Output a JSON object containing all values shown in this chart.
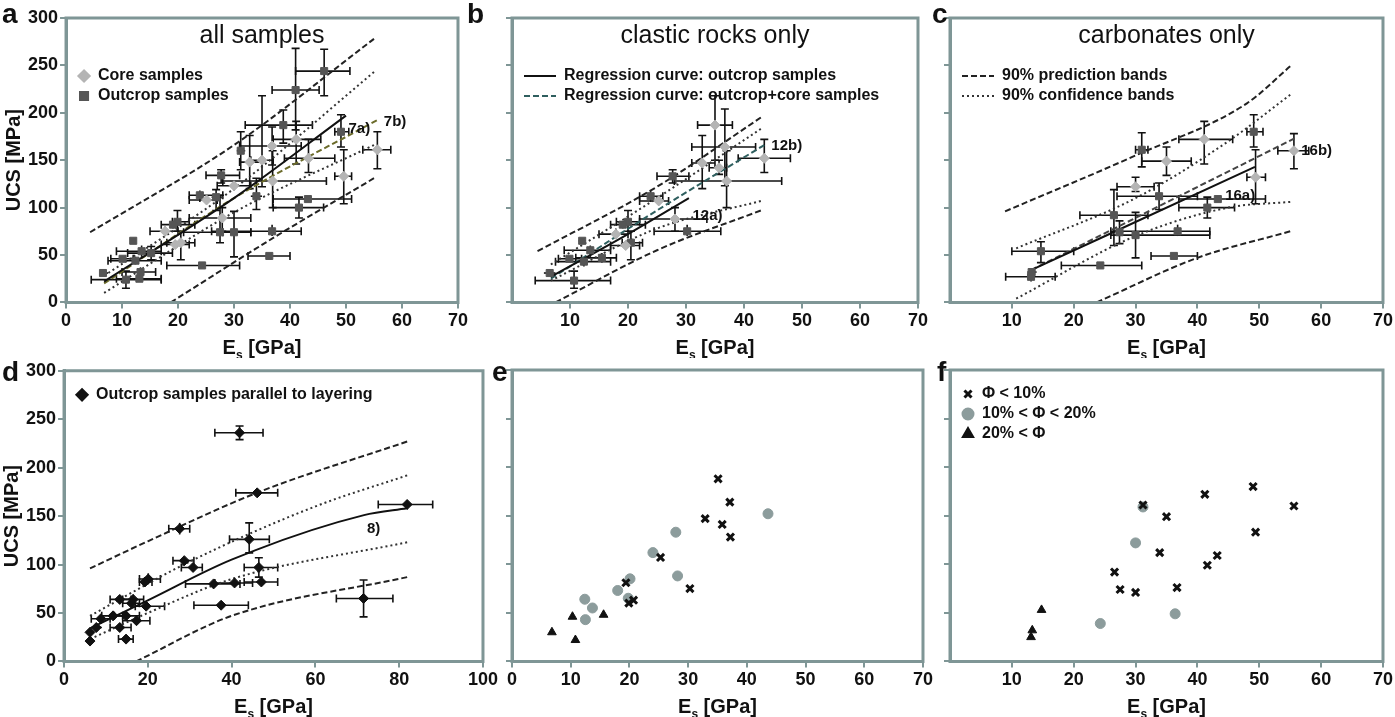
{
  "chart_data": [
    {
      "type": "scatter",
      "title": "all samples",
      "xlabel": "E$_{s}$ [GPa]",
      "ylabel": "UCS [MPa]",
      "xlim": [
        0,
        70
      ],
      "ylim": [
        0,
        300
      ],
      "xticks": [
        0,
        10,
        20,
        30,
        40,
        50,
        60,
        70
      ],
      "yticks": [
        0,
        50,
        100,
        150,
        200,
        250,
        300
      ],
      "legend": "top left",
      "annotations": [
        "a",
        {
          "text": "7a)",
          "x": 49.9,
          "y": 197
        },
        {
          "text": "7b)",
          "x": 55.5,
          "y": 192
        }
      ],
      "series": [
        {
          "name": "Core samples",
          "type": "scatter",
          "marker": "diamond",
          "color": "#b4b4b4",
          "x": [
            41.1,
            36.8,
            32.8,
            35.0,
            43.3,
            55.6,
            49.6,
            30.0,
            25.1,
            36.9,
            27.9,
            19.5,
            20.5,
            17.7
          ],
          "values": [
            172,
            165,
            148,
            150,
            152,
            161,
            133,
            123,
            108,
            128,
            89,
            61,
            63,
            75
          ],
          "errors": [
            [
              146,
              191
            ],
            [
              145,
              185
            ],
            [
              120,
              176
            ],
            [
              122,
              218
            ],
            [
              137,
              172
            ],
            [
              141,
              180
            ],
            [
              104,
              161
            ],
            [
              118,
              128
            ],
            [
              104,
              112
            ],
            [
              100,
              160
            ],
            [
              75,
              100
            ],
            [
              57,
              65
            ],
            [
              45,
              75
            ],
            [
              70,
              80
            ]
          ],
          "xerrors": [
            [
              37,
              45.5
            ],
            [
              31,
              42
            ],
            [
              31,
              35
            ],
            [
              33,
              37
            ],
            [
              39,
              48
            ],
            [
              53,
              58
            ],
            [
              48,
              51
            ],
            [
              27,
              33
            ],
            [
              22,
              27
            ],
            [
              28,
              46.5
            ],
            [
              22,
              33
            ],
            [
              17,
              22
            ],
            [
              18,
              23
            ],
            [
              15,
              20
            ]
          ]
        },
        {
          "name": "Outcrop samples",
          "type": "scatter",
          "marker": "square",
          "color": "#555555",
          "x": [
            46.1,
            41.0,
            38.8,
            31.2,
            27.7,
            23.9,
            26.8,
            34.0,
            43.2,
            41.6,
            30.0,
            27.5,
            36.8,
            36.3,
            24.3,
            19.9,
            19.1,
            12.0,
            13.5,
            15.2,
            10.1,
            12.4,
            6.6,
            13.3,
            13.1,
            10.7,
            49.1
          ],
          "values": [
            244,
            224,
            187,
            160,
            134,
            113,
            111,
            112,
            109,
            100,
            74,
            74,
            75,
            49,
            39,
            85,
            82,
            65,
            54,
            52,
            46,
            44,
            31,
            32,
            25,
            24,
            180
          ],
          "errors": [
            [
              218,
              267
            ],
            [
              182,
              268
            ],
            [
              168,
              203
            ],
            [
              140,
              180
            ],
            [
              126,
              140
            ],
            [
              106,
              118
            ],
            [
              97,
              119
            ],
            [
              98,
              131
            ],
            [
              107,
              111
            ],
            [
              89,
              111
            ],
            [
              48,
              96
            ],
            [
              63,
              113
            ],
            [
              70,
              82
            ],
            [
              46,
              52
            ],
            [
              38,
              40
            ],
            [
              75,
              97
            ],
            [
              78,
              86
            ],
            [
              62,
              68
            ],
            [
              48,
              60
            ],
            [
              45,
              59
            ],
            [
              43,
              49
            ],
            [
              40,
              48
            ],
            [
              28,
              34
            ],
            [
              27,
              37
            ],
            [
              22,
              28
            ],
            [
              15,
              33
            ],
            [
              164,
              198
            ]
          ],
          "xerrors": [
            [
              41,
              50.7
            ],
            [
              36.8,
              45.2
            ],
            [
              32,
              44
            ],
            [
              30.5,
              32
            ],
            [
              25,
              31
            ],
            [
              22,
              28
            ],
            [
              26,
              28
            ],
            [
              33,
              35
            ],
            [
              37,
              51
            ],
            [
              37,
              46
            ],
            [
              28,
              33
            ],
            [
              21,
              33
            ],
            [
              26,
              42
            ],
            [
              32.5,
              40
            ],
            [
              18,
              31
            ],
            [
              19,
              22
            ],
            [
              17,
              23
            ],
            [
              11.5,
              12.5
            ],
            [
              9,
              17
            ],
            [
              11,
              19
            ],
            [
              8,
              12
            ],
            [
              7.5,
              17
            ],
            [
              6,
              7.5
            ],
            [
              10,
              16
            ],
            [
              9,
              17
            ],
            [
              4.5,
              17
            ],
            [
              48,
              50.5
            ]
          ]
        },
        {
          "type": "line",
          "line_style": "dashed",
          "color": "#222222",
          "x": [
            4.3,
            30,
            55
          ],
          "values": [
            74,
            166,
            278
          ]
        },
        {
          "type": "line",
          "line_style": "dotted",
          "color": "#333333",
          "x": [
            6.8,
            30,
            55
          ],
          "values": [
            28,
            120,
            243
          ]
        },
        {
          "type": "line",
          "line_style": "solid",
          "color": "#111111",
          "x": [
            6.8,
            30,
            50
          ],
          "values": [
            22,
            110,
            197
          ]
        },
        {
          "type": "line",
          "line_style": "dashed",
          "color": "#6b6b2a",
          "x": [
            6.8,
            30,
            55.5
          ],
          "values": [
            20,
            110,
            192
          ]
        },
        {
          "type": "line",
          "line_style": "dotted",
          "color": "#333333",
          "x": [
            6.8,
            30,
            55
          ],
          "values": [
            10,
            95,
            166
          ]
        },
        {
          "type": "line",
          "line_style": "dashed",
          "color": "#222222",
          "x": [
            18.7,
            37,
            55
          ],
          "values": [
            0,
            68,
            131
          ]
        }
      ]
    },
    {
      "type": "scatter",
      "title": "clastic rocks only",
      "xlabel": "E$_{s}$ [GPa]",
      "xlim": [
        0,
        70
      ],
      "ylim": [
        0,
        300
      ],
      "xticks": [
        10,
        20,
        30,
        40,
        50,
        60,
        70
      ],
      "yticks": [
        0,
        50,
        100,
        150,
        200,
        250,
        300
      ],
      "tick_labels": "x",
      "legend": "top left",
      "annotations": [
        "b",
        {
          "text": "12a)",
          "x": 30.6,
          "y": 106
        },
        {
          "text": "12b)",
          "x": 43.5,
          "y": 166
        }
      ],
      "series": [
        {
          "name": "Regression curve: outcrop samples",
          "type": "line",
          "line_style": "solid",
          "color": "#111111",
          "x": [
            6.7,
            20,
            30.5
          ],
          "values": [
            27,
            72,
            110
          ]
        },
        {
          "name": "Regression curve: outcrop+core samples",
          "type": "line",
          "line_style": "dashed",
          "color": "#2f5f5f",
          "x": [
            6.7,
            25,
            43.5
          ],
          "values": [
            25,
            97,
            166
          ]
        },
        {
          "type": "scatter",
          "marker": "diamond",
          "color": "#b4b4b4",
          "x": [
            35.0,
            36.7,
            32.8,
            43.5,
            35.7,
            37.0,
            25.3,
            28.1,
            17.9,
            19.6
          ],
          "values": [
            187,
            164,
            147,
            152,
            142,
            128,
            107,
            88,
            72,
            60
          ],
          "errors": [
            [
              150,
              218
            ],
            [
              123,
              204
            ],
            [
              120,
              176
            ],
            [
              137,
              172
            ],
            [
              135,
              150
            ],
            [
              100,
              160
            ],
            [
              104,
              112
            ],
            [
              75,
              100
            ],
            [
              68,
              78
            ],
            [
              57,
              65
            ]
          ],
          "xerrors": [
            [
              32,
              38
            ],
            [
              31,
              42
            ],
            [
              31,
              35
            ],
            [
              39,
              48
            ],
            [
              34,
              37
            ],
            [
              28,
              46.5
            ],
            [
              22,
              27
            ],
            [
              22,
              33.6
            ],
            [
              15,
              20
            ],
            [
              17,
              22
            ]
          ]
        },
        {
          "type": "scatter",
          "marker": "square",
          "color": "#555555",
          "x": [
            27.7,
            23.9,
            30.2,
            20.0,
            19.1,
            20.5,
            12.1,
            13.5,
            15.5,
            12.4,
            9.9,
            6.5,
            10.7
          ],
          "values": [
            133,
            112,
            75,
            85,
            82,
            63,
            65,
            55,
            47,
            43,
            46,
            31,
            23
          ],
          "errors": [
            [
              126,
              140
            ],
            [
              106,
              118
            ],
            [
              70,
              82
            ],
            [
              75,
              97
            ],
            [
              78,
              86
            ],
            [
              45,
              75
            ],
            [
              62,
              68
            ],
            [
              48,
              60
            ],
            [
              42,
              52
            ],
            [
              38,
              48
            ],
            [
              43,
              49
            ],
            [
              28,
              34
            ],
            [
              15,
              33
            ]
          ],
          "xerrors": [
            [
              25,
              30.5
            ],
            [
              22,
              26
            ],
            [
              24.5,
              36
            ],
            [
              18,
              22
            ],
            [
              17,
              23
            ],
            [
              19,
              22.5
            ],
            [
              11.5,
              12.7
            ],
            [
              9,
              17
            ],
            [
              11,
              18
            ],
            [
              7.5,
              17
            ],
            [
              8,
              12
            ],
            [
              5.5,
              7.5
            ],
            [
              4,
              17
            ]
          ]
        },
        {
          "type": "line",
          "line_style": "dashed",
          "color": "#222222",
          "x": [
            4.4,
            25,
            42.9
          ],
          "values": [
            54,
            122,
            195
          ]
        },
        {
          "type": "line",
          "line_style": "dotted",
          "color": "#333333",
          "x": [
            6.7,
            25,
            42.9
          ],
          "values": [
            40,
            110,
            183
          ]
        },
        {
          "type": "line",
          "line_style": "dotted",
          "color": "#333333",
          "x": [
            6.7,
            25,
            42.9
          ],
          "values": [
            23,
            78,
            107
          ]
        },
        {
          "type": "line",
          "line_style": "dashed",
          "color": "#222222",
          "x": [
            7.5,
            25,
            42.9
          ],
          "values": [
            0,
            55,
            97
          ]
        }
      ]
    },
    {
      "type": "scatter",
      "title": "carbonates only",
      "xlabel": "E$_{s}$ [GPa]",
      "xlim": [
        0,
        70
      ],
      "ylim": [
        0,
        300
      ],
      "xticks": [
        10,
        20,
        30,
        40,
        50,
        60,
        70
      ],
      "yticks": [
        0,
        50,
        100,
        150,
        200,
        250,
        300
      ],
      "tick_labels": "x",
      "legend": "top left",
      "annotations": [
        "c",
        {
          "text": "16a)",
          "x": 44.0,
          "y": 127
        },
        {
          "text": "16b)",
          "x": 56.3,
          "y": 174
        }
      ],
      "series": [
        {
          "name": "90% prediction bands",
          "type": "line",
          "line_style": "dashed",
          "color": "#222222",
          "x": [
            8.9,
            30,
            48,
            55
          ],
          "values": [
            96,
            155,
            210,
            249
          ]
        },
        {
          "name": "90% confidence bands",
          "type": "line",
          "line_style": "dotted",
          "color": "#333333",
          "x": [
            10.7,
            30,
            45,
            55
          ],
          "values": [
            57,
            110,
            170,
            219
          ]
        },
        {
          "type": "line",
          "line_style": "dotted",
          "color": "#333333",
          "x": [
            10.7,
            30,
            45,
            55
          ],
          "values": [
            4,
            70,
            100,
            106
          ]
        },
        {
          "type": "line",
          "line_style": "dashed",
          "color": "#222222",
          "x": [
            23.7,
            40,
            55
          ],
          "values": [
            0,
            47,
            75
          ]
        },
        {
          "type": "line",
          "line_style": "solid",
          "color": "#111111",
          "x": [
            13.1,
            49.3
          ],
          "values": [
            34,
            143
          ]
        },
        {
          "type": "line",
          "line_style": "dashed",
          "color": "#444444",
          "x": [
            13.1,
            55.7
          ],
          "values": [
            34,
            173
          ]
        },
        {
          "type": "scatter",
          "marker": "diamond",
          "color": "#b4b4b4",
          "x": [
            41.1,
            35.0,
            55.6,
            49.4,
            30.0
          ],
          "values": [
            172,
            149,
            160,
            132,
            122
          ],
          "errors": [
            [
              146,
              191
            ],
            [
              134,
              164
            ],
            [
              141,
              178
            ],
            [
              104,
              161
            ],
            [
              117,
              132
            ]
          ],
          "xerrors": [
            [
              37,
              45.7
            ],
            [
              31,
              39
            ],
            [
              53,
              58
            ],
            [
              48,
              51
            ],
            [
              27,
              33
            ]
          ]
        },
        {
          "type": "scatter",
          "marker": "square",
          "color": "#555555",
          "x": [
            31.0,
            49.1,
            33.8,
            43.3,
            41.6,
            26.5,
            27.4,
            30.0,
            36.8,
            36.2,
            24.3,
            14.7,
            13.1,
            13.2
          ],
          "values": [
            161,
            180,
            112,
            109,
            100,
            92,
            74,
            71,
            75,
            49,
            39,
            54,
            27,
            32
          ],
          "errors": [
            [
              143,
              179
            ],
            [
              164,
              198
            ],
            [
              98,
              126
            ],
            [
              107,
              111
            ],
            [
              89,
              111
            ],
            [
              60,
              119
            ],
            [
              62,
              86
            ],
            [
              47,
              95
            ],
            [
              70,
              82
            ],
            [
              46,
              52
            ],
            [
              38,
              40
            ],
            [
              42,
              64
            ],
            [
              22,
              27
            ],
            null
          ],
          "xerrors": [
            [
              30,
              32
            ],
            [
              48,
              50.6
            ],
            [
              27,
              40
            ],
            [
              37,
              51
            ],
            [
              37,
              46
            ],
            [
              21,
              32
            ],
            [
              27,
              28
            ],
            [
              26,
              42
            ],
            [
              26,
              42
            ],
            [
              32.5,
              40
            ],
            [
              18,
              31
            ],
            [
              10,
              20
            ],
            [
              9,
              17
            ],
            [
              12.5,
              14
            ]
          ]
        }
      ]
    },
    {
      "type": "scatter",
      "xlabel": "E$_{s}$ [GPa]",
      "ylabel": "UCS [MPa]",
      "xlim": [
        0,
        100
      ],
      "ylim": [
        0,
        300
      ],
      "xticks": [
        0,
        20,
        40,
        60,
        80,
        100
      ],
      "yticks": [
        0,
        50,
        100,
        150,
        200,
        250,
        300
      ],
      "legend": "top left",
      "annotations": [
        "d",
        {
          "text": "8)",
          "x": 71.6,
          "y": 151
        }
      ],
      "series": [
        {
          "name": "Outcrop samples parallel to layering",
          "type": "scatter",
          "marker": "diamond",
          "color": "#111111",
          "x": [
            41.9,
            46.1,
            81.9,
            27.6,
            44.2,
            28.7,
            30.8,
            46.5,
            20.1,
            19.3,
            35.7,
            40.7,
            47.1,
            37.5,
            71.5,
            13.3,
            16.5,
            16.1,
            19.6,
            8.8,
            11.7,
            7.7,
            6.2,
            6.2,
            13.3,
            14.8,
            17.3,
            14.8
          ],
          "values": [
            236,
            174,
            162,
            137,
            126,
            104,
            97,
            97,
            85,
            82,
            80,
            81,
            82,
            58,
            65,
            64,
            64,
            60,
            57,
            44,
            47,
            35,
            30,
            21,
            35,
            47,
            42,
            23
          ],
          "errors": [
            [
              229,
              243
            ],
            [
              172,
              176
            ],
            [
              158,
              166
            ],
            [
              131,
              143
            ],
            [
              112,
              143
            ],
            [
              101,
              107
            ],
            [
              93,
              101
            ],
            [
              87,
              107
            ],
            [
              80,
              91
            ],
            [
              79,
              85
            ],
            [
              77,
              83
            ],
            [
              78,
              84
            ],
            [
              80,
              84
            ],
            [
              54,
              62
            ],
            [
              46,
              84
            ],
            [
              60,
              68
            ],
            [
              59,
              69
            ],
            [
              55,
              65
            ],
            [
              53,
              61
            ],
            [
              41,
              47
            ],
            [
              44,
              50
            ],
            [
              33,
              37
            ],
            [
              27,
              33
            ],
            [
              19,
              23
            ],
            [
              31,
              39
            ],
            [
              43,
              51
            ],
            [
              38,
              46
            ],
            [
              21,
              25
            ]
          ],
          "xerrors": [
            [
              36,
              47.5
            ],
            [
              41,
              51
            ],
            [
              75,
              88
            ],
            [
              25,
              30
            ],
            [
              39.5,
              49
            ],
            [
              26,
              31
            ],
            [
              28,
              33
            ],
            [
              43,
              51
            ],
            [
              18,
              23
            ],
            [
              18,
              21
            ],
            [
              29,
              42
            ],
            [
              36,
              45
            ],
            [
              43,
              51
            ],
            [
              31,
              44
            ],
            [
              65,
              78.5
            ],
            [
              11,
              16
            ],
            [
              14,
              19
            ],
            [
              14,
              18
            ],
            [
              17,
              24
            ],
            [
              6.5,
              11
            ],
            [
              9,
              14
            ],
            [
              6.5,
              9
            ],
            [
              5.5,
              7
            ],
            [
              5.5,
              7
            ],
            [
              11,
              16
            ],
            [
              12,
              18
            ],
            [
              14,
              20.5
            ],
            [
              13,
              16.5
            ]
          ]
        },
        {
          "type": "line",
          "line_style": "dashed",
          "color": "#222222",
          "x": [
            6.2,
            20,
            46,
            81.9
          ],
          "values": [
            96,
            124,
            174,
            227
          ]
        },
        {
          "type": "line",
          "line_style": "dotted",
          "color": "#333333",
          "x": [
            6.2,
            30,
            60,
            81.9
          ],
          "values": [
            47,
            103,
            160,
            192
          ]
        },
        {
          "type": "line",
          "line_style": "solid",
          "color": "#111111",
          "x": [
            6.2,
            20,
            40,
            71.6,
            81.9
          ],
          "values": [
            34,
            63,
            105,
            151,
            158
          ]
        },
        {
          "type": "line",
          "line_style": "dotted",
          "color": "#333333",
          "x": [
            6.2,
            20,
            40,
            81.9
          ],
          "values": [
            23,
            50,
            85,
            123
          ]
        },
        {
          "type": "line",
          "line_style": "dashed",
          "color": "#222222",
          "x": [
            17.2,
            40,
            81.9
          ],
          "values": [
            0,
            47,
            87
          ]
        }
      ]
    },
    {
      "type": "scatter",
      "xlabel": "E$_{s}$ [GPa]",
      "xlim": [
        0,
        70
      ],
      "ylim": [
        0,
        300
      ],
      "xticks": [
        0,
        10,
        20,
        30,
        40,
        50,
        60,
        70
      ],
      "yticks": [
        0,
        50,
        100,
        150,
        200,
        250,
        300
      ],
      "tick_labels": "x",
      "annotations": [
        "e"
      ],
      "series": [
        {
          "type": "scatter",
          "marker": "cross",
          "color": "#111111",
          "x": [
            35.1,
            37.1,
            32.9,
            35.8,
            37.2,
            25.3,
            30.3,
            19.4,
            19.9,
            20.7
          ],
          "values": [
            188,
            164,
            147,
            141,
            128,
            107,
            75,
            81,
            60,
            63
          ]
        },
        {
          "type": "scatter",
          "marker": "circle",
          "color": "#8c9c9c",
          "x": [
            43.6,
            27.9,
            24.0,
            20.1,
            28.2,
            18.0,
            19.8,
            12.4,
            13.7,
            12.5
          ],
          "values": [
            152,
            133,
            112,
            85,
            88,
            73,
            65,
            64,
            55,
            43
          ]
        },
        {
          "type": "scatter",
          "marker": "triangle",
          "color": "#111111",
          "x": [
            6.8,
            10.3,
            15.6,
            10.8
          ],
          "values": [
            30,
            46,
            48,
            22
          ]
        }
      ]
    },
    {
      "type": "scatter",
      "xlabel": "E$_{s}$ [GPa]",
      "xlim": [
        0,
        70
      ],
      "ylim": [
        0,
        300
      ],
      "xticks": [
        10,
        20,
        30,
        40,
        50,
        60,
        70
      ],
      "yticks": [
        0,
        50,
        100,
        150,
        200,
        250,
        300
      ],
      "tick_labels": "x",
      "legend": "top left",
      "annotations": [
        "f"
      ],
      "series": [
        {
          "name": "Φ < 10%",
          "type": "scatter",
          "marker": "cross",
          "color": "#111111",
          "x": [
            49.0,
            41.2,
            31.2,
            35.0,
            55.6,
            49.4,
            33.9,
            43.2,
            41.6,
            26.6,
            27.5,
            30.0,
            36.7
          ],
          "values": [
            180,
            172,
            161,
            149,
            160,
            133,
            112,
            109,
            99,
            92,
            74,
            71,
            76
          ]
        },
        {
          "name": "10% < Φ < 20%",
          "type": "scatter",
          "marker": "circle",
          "color": "#8c9c9c",
          "x": [
            31.2,
            30.0,
            24.3,
            36.4
          ],
          "values": [
            159,
            122,
            39,
            49
          ]
        },
        {
          "name": "20% < Φ",
          "type": "scatter",
          "marker": "triangle",
          "color": "#111111",
          "x": [
            14.8,
            13.3,
            13.1
          ],
          "values": [
            53,
            32,
            25
          ]
        }
      ]
    }
  ]
}
